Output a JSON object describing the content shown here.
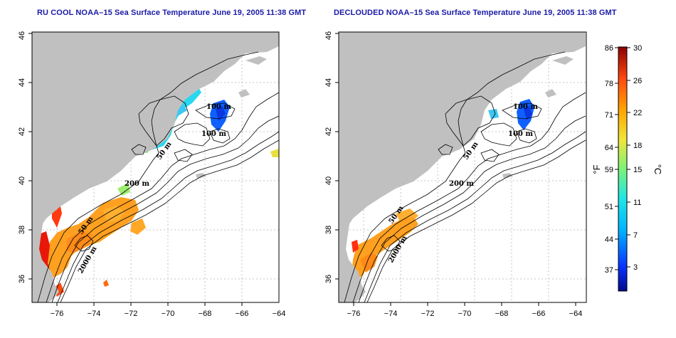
{
  "panels": [
    {
      "title": "RU COOL NOAA–15 Sea Surface Temperature June 19, 2005 11:38 GMT"
    },
    {
      "title": "DECLOUDED NOAA–15 Sea Surface Temperature June 19, 2005 11:38 GMT"
    }
  ],
  "axes": {
    "x_ticks": [
      "−76",
      "−74",
      "−72",
      "−70",
      "−68",
      "−66",
      "−64"
    ],
    "y_ticks": [
      "36",
      "38",
      "40",
      "42",
      "44",
      "46"
    ]
  },
  "contour_labels": {
    "m50": "50 m",
    "m100": "100 m",
    "m200": "200 m",
    "m2000": "2000 m"
  },
  "colorbar": {
    "fahrenheit_ticks": [
      "86",
      "78",
      "71",
      "64",
      "59",
      "51",
      "44",
      "37"
    ],
    "celsius_ticks": [
      "30",
      "26",
      "22",
      "18",
      "15",
      "11",
      "7",
      "3"
    ],
    "fahrenheit_unit": "°F",
    "celsius_unit": "°C"
  },
  "colors": {
    "land": "#c0c0c0",
    "ocean": "#ffffff",
    "title": "#1a1aa8",
    "grid": "#b4b4b4",
    "contour": "#000000"
  }
}
